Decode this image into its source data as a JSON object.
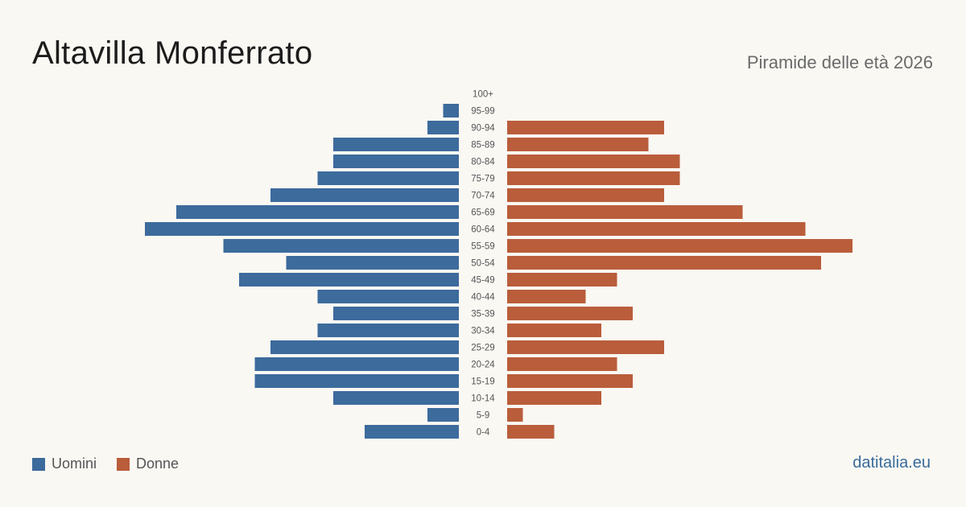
{
  "header": {
    "title": "Altavilla Monferrato",
    "subtitle": "Piramide delle età 2026"
  },
  "footer": {
    "brand": "datitalia.eu"
  },
  "colors": {
    "men": "#3c6b9c",
    "women": "#b95d3b"
  },
  "chart_data": {
    "type": "bar",
    "orientation": "horizontal-pyramid",
    "categories": [
      "100+",
      "95-99",
      "90-94",
      "85-89",
      "80-84",
      "75-79",
      "70-74",
      "65-69",
      "60-64",
      "55-59",
      "50-54",
      "45-49",
      "40-44",
      "35-39",
      "30-34",
      "25-29",
      "20-24",
      "15-19",
      "10-14",
      "5-9",
      "0-4"
    ],
    "series": [
      {
        "name": "Uomini",
        "values": [
          0,
          1,
          2,
          8,
          8,
          9,
          12,
          18,
          20,
          15,
          11,
          14,
          9,
          8,
          9,
          12,
          13,
          13,
          8,
          2,
          6
        ]
      },
      {
        "name": "Donne",
        "values": [
          0,
          0,
          10,
          9,
          11,
          11,
          10,
          15,
          19,
          22,
          20,
          7,
          5,
          8,
          6,
          10,
          7,
          8,
          6,
          1,
          3
        ]
      }
    ],
    "legend": {
      "position": "bottom-left"
    },
    "grid": false
  }
}
